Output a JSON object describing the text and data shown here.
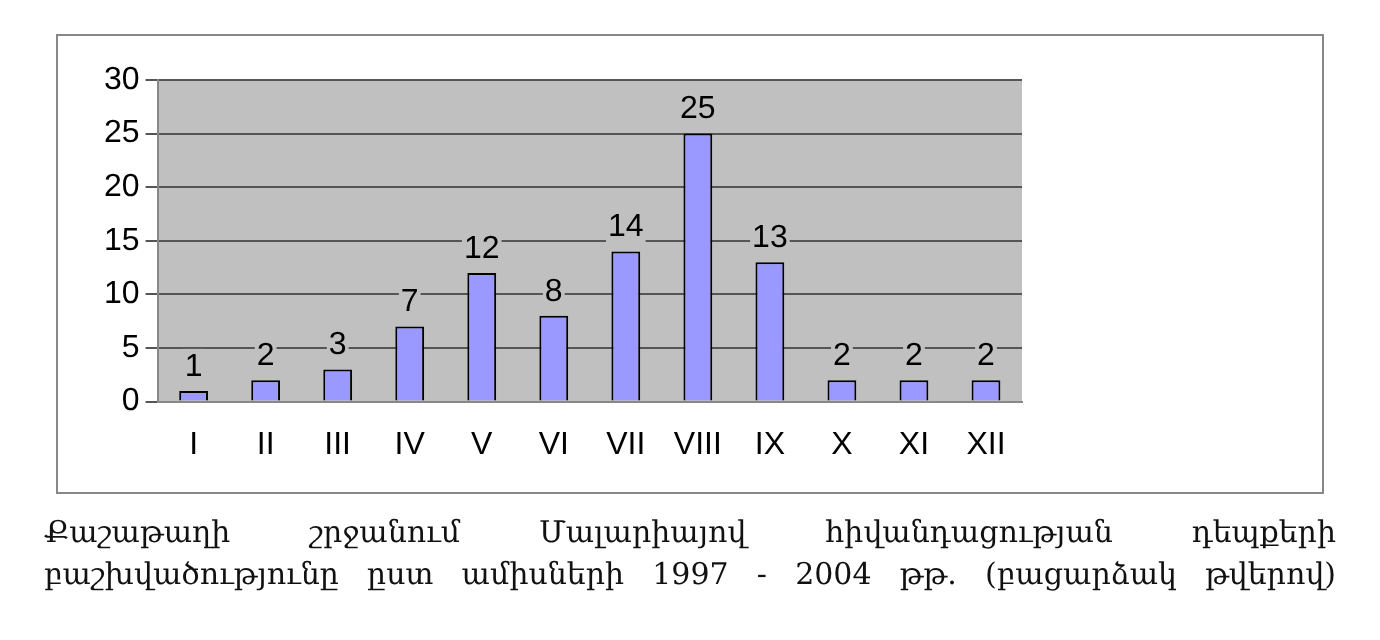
{
  "chart_data": {
    "type": "bar",
    "categories": [
      "I",
      "II",
      "III",
      "IV",
      "V",
      "VI",
      "VII",
      "VIII",
      "IX",
      "X",
      "XI",
      "XII"
    ],
    "values": [
      1,
      2,
      3,
      7,
      12,
      8,
      14,
      25,
      13,
      2,
      2,
      2
    ],
    "color": "#9999ff",
    "ylim": [
      0,
      30
    ],
    "yticks": [
      0,
      5,
      10,
      15,
      20,
      25,
      30
    ],
    "grid": "y",
    "data_labels": true,
    "legend": false,
    "annotations": [
      "Քաշաթաղի շրջանում Մալարիայով հիվանդացության դեպքերի բաշխվածությունը ըստ ամիսների 1997 - 2004 թթ. (բացարձակ թվերով)"
    ]
  }
}
